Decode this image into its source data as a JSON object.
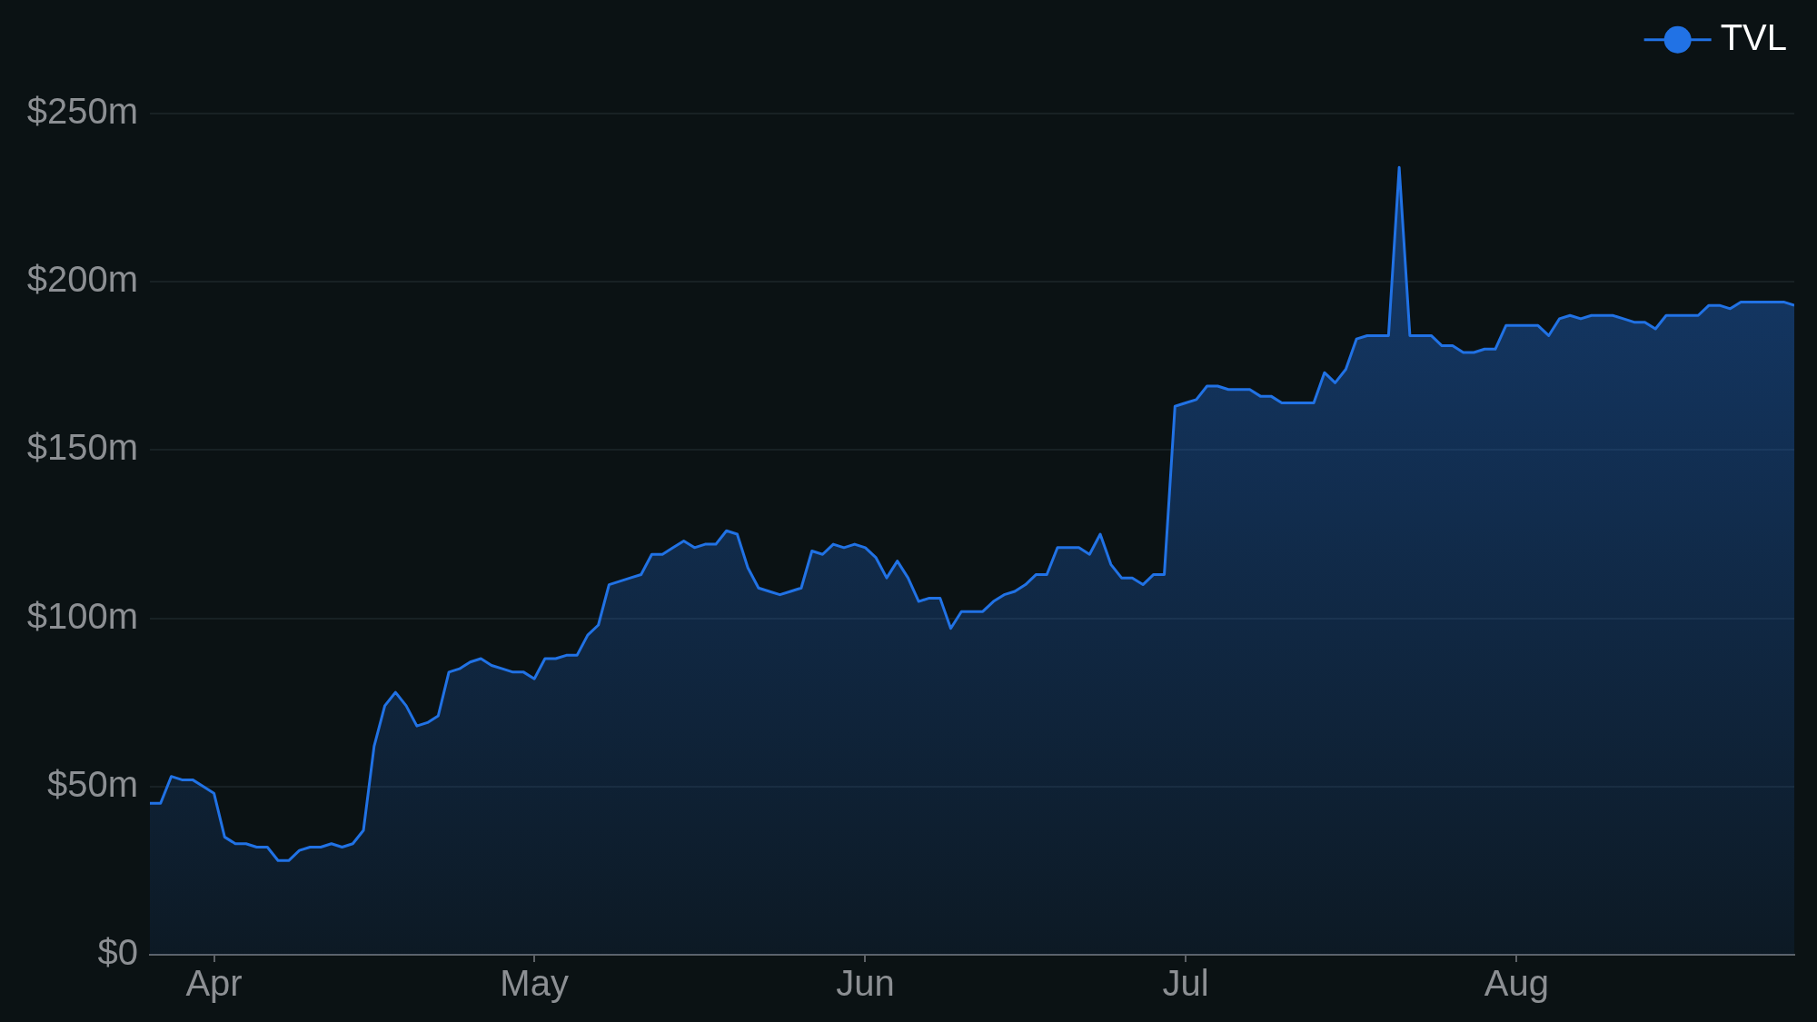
{
  "chart_data": {
    "type": "area",
    "x": [
      "--03-26",
      "--03-27",
      "--03-28",
      "--03-29",
      "--03-30",
      "--03-31",
      "--04-01",
      "--04-02",
      "--04-03",
      "--04-04",
      "--04-05",
      "--04-06",
      "--04-07",
      "--04-08",
      "--04-09",
      "--04-10",
      "--04-11",
      "--04-12",
      "--04-13",
      "--04-14",
      "--04-15",
      "--04-16",
      "--04-17",
      "--04-18",
      "--04-19",
      "--04-20",
      "--04-21",
      "--04-22",
      "--04-23",
      "--04-24",
      "--04-25",
      "--04-26",
      "--04-27",
      "--04-28",
      "--04-29",
      "--04-30",
      "--05-01",
      "--05-02",
      "--05-03",
      "--05-04",
      "--05-05",
      "--05-06",
      "--05-07",
      "--05-08",
      "--05-09",
      "--05-10",
      "--05-11",
      "--05-12",
      "--05-13",
      "--05-14",
      "--05-15",
      "--05-16",
      "--05-17",
      "--05-18",
      "--05-19",
      "--05-20",
      "--05-21",
      "--05-22",
      "--05-23",
      "--05-24",
      "--05-25",
      "--05-26",
      "--05-27",
      "--05-28",
      "--05-29",
      "--05-30",
      "--05-31",
      "--06-01",
      "--06-02",
      "--06-03",
      "--06-04",
      "--06-05",
      "--06-06",
      "--06-07",
      "--06-08",
      "--06-09",
      "--06-10",
      "--06-11",
      "--06-12",
      "--06-13",
      "--06-14",
      "--06-15",
      "--06-16",
      "--06-17",
      "--06-18",
      "--06-19",
      "--06-20",
      "--06-21",
      "--06-22",
      "--06-23",
      "--06-24",
      "--06-25",
      "--06-26",
      "--06-27",
      "--06-28",
      "--06-29",
      "--06-30",
      "--07-01",
      "--07-02",
      "--07-03",
      "--07-04",
      "--07-05",
      "--07-06",
      "--07-07",
      "--07-08",
      "--07-09",
      "--07-10",
      "--07-11",
      "--07-12",
      "--07-13",
      "--07-14",
      "--07-15",
      "--07-16",
      "--07-17",
      "--07-18",
      "--07-19",
      "--07-20",
      "--07-21",
      "--07-22",
      "--07-23",
      "--07-24",
      "--07-25",
      "--07-26",
      "--07-27",
      "--07-28",
      "--07-29",
      "--07-30",
      "--07-31",
      "--08-01",
      "--08-02",
      "--08-03",
      "--08-04",
      "--08-05",
      "--08-06",
      "--08-07",
      "--08-08",
      "--08-09",
      "--08-10",
      "--08-11",
      "--08-12",
      "--08-13",
      "--08-14",
      "--08-15",
      "--08-16",
      "--08-17",
      "--08-18",
      "--08-19",
      "--08-20",
      "--08-21",
      "--08-22",
      "--08-23",
      "--08-24",
      "--08-25",
      "--08-26",
      "--08-27"
    ],
    "series": [
      {
        "name": "TVL",
        "color": "#2172e5",
        "values": [
          45,
          45,
          53,
          52,
          52,
          50,
          48,
          35,
          33,
          33,
          32,
          32,
          28,
          28,
          31,
          32,
          32,
          33,
          32,
          33,
          37,
          62,
          74,
          78,
          74,
          68,
          69,
          71,
          84,
          85,
          87,
          88,
          86,
          85,
          84,
          84,
          82,
          88,
          88,
          89,
          89,
          95,
          98,
          110,
          111,
          112,
          113,
          119,
          119,
          121,
          123,
          121,
          122,
          122,
          126,
          125,
          115,
          109,
          108,
          107,
          108,
          109,
          120,
          119,
          122,
          121,
          122,
          121,
          118,
          112,
          117,
          112,
          105,
          106,
          106,
          97,
          102,
          102,
          102,
          105,
          107,
          108,
          110,
          113,
          113,
          121,
          121,
          121,
          119,
          125,
          116,
          112,
          112,
          110,
          113,
          113,
          163,
          164,
          165,
          169,
          169,
          168,
          168,
          168,
          166,
          166,
          164,
          164,
          164,
          164,
          173,
          170,
          174,
          183,
          184,
          184,
          184,
          234,
          184,
          184,
          184,
          181,
          181,
          179,
          179,
          180,
          180,
          187,
          187,
          187,
          187,
          184,
          189,
          190,
          189,
          190,
          190,
          190,
          189,
          188,
          188,
          186,
          190,
          190,
          190,
          190,
          193,
          193,
          192,
          194,
          194,
          194,
          194,
          194,
          193
        ]
      }
    ],
    "xlim": [
      "--03-26",
      "--08-27"
    ],
    "xticks": [
      {
        "value": "--04-01",
        "label": "Apr"
      },
      {
        "value": "--05-01",
        "label": "May"
      },
      {
        "value": "--06-01",
        "label": "Jun"
      },
      {
        "value": "--07-01",
        "label": "Jul"
      },
      {
        "value": "--08-01",
        "label": "Aug"
      }
    ],
    "ylim": [
      0,
      250
    ],
    "yticks": [
      {
        "value": 0,
        "label": "$0"
      },
      {
        "value": 50,
        "label": "$50m"
      },
      {
        "value": 100,
        "label": "$100m"
      },
      {
        "value": 150,
        "label": "$150m"
      },
      {
        "value": 200,
        "label": "$200m"
      },
      {
        "value": 250,
        "label": "$250m"
      }
    ],
    "grid": "y",
    "legend": "top right",
    "marker": "none"
  }
}
